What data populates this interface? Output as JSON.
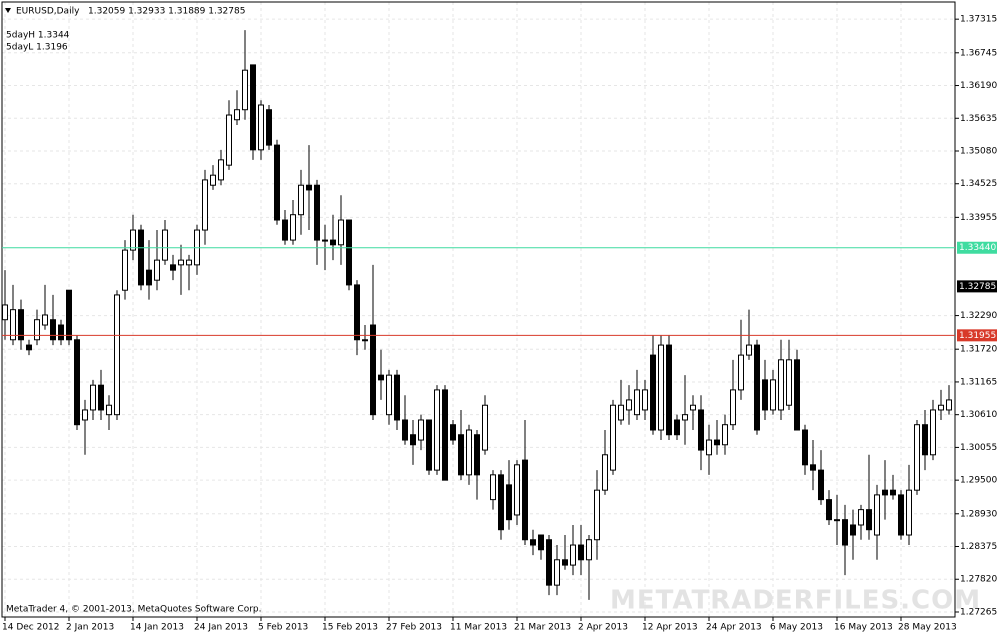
{
  "chart_data": {
    "type": "candlestick",
    "symbol": "EURUSD,Daily",
    "quote": "1.32059 1.32933 1.31889 1.32785",
    "indicators": [
      "5dayH 1.3344",
      "5dayL 1.3196"
    ],
    "footer": "MetaTrader 4, © 2001-2013, MetaQuotes Software Corp.",
    "watermark": "METATRADERFILES.COM",
    "categories": [
      "14 Dec 2012",
      null,
      null,
      null,
      null,
      null,
      null,
      null,
      "2 Jan 2013",
      null,
      null,
      null,
      null,
      null,
      null,
      null,
      "14 Jan 2013",
      null,
      null,
      null,
      null,
      null,
      null,
      null,
      "24 Jan 2013",
      null,
      null,
      null,
      null,
      null,
      null,
      null,
      "5 Feb 2013",
      null,
      null,
      null,
      null,
      null,
      null,
      null,
      "15 Feb 2013",
      null,
      null,
      null,
      null,
      null,
      null,
      null,
      "27 Feb 2013",
      null,
      null,
      null,
      null,
      null,
      null,
      null,
      "11 Mar 2013",
      null,
      null,
      null,
      null,
      null,
      null,
      null,
      "21 Mar 2013",
      null,
      null,
      null,
      null,
      null,
      null,
      null,
      "2 Apr 2013",
      null,
      null,
      null,
      null,
      null,
      null,
      null,
      "12 Apr 2013",
      null,
      null,
      null,
      null,
      null,
      null,
      null,
      "24 Apr 2013",
      null,
      null,
      null,
      null,
      null,
      null,
      null,
      "6 May 2013",
      null,
      null,
      null,
      null,
      null,
      null,
      null,
      "16 May 2013",
      null,
      null,
      null,
      null,
      null,
      null,
      null,
      "28 May 2013",
      null,
      null,
      null,
      null,
      null,
      null
    ],
    "open": [
      1.3222,
      1.3188,
      1.3239,
      1.3179,
      1.3188,
      1.3213,
      1.3222,
      1.3213,
      1.3272,
      1.3188,
      1.3052,
      1.3069,
      1.3111,
      1.3061,
      1.3061,
      1.3272,
      1.334,
      1.3374,
      1.3306,
      1.3289,
      1.3323,
      1.3315,
      1.3315,
      1.3315,
      1.3315,
      1.3374,
      1.345,
      1.3459,
      1.3484,
      1.3561,
      1.3578,
      1.3654,
      1.351,
      1.3578,
      1.3518,
      1.3391,
      1.3357,
      1.34,
      1.345,
      1.345,
      1.3357,
      1.3357,
      1.3349,
      1.3391,
      1.3281,
      1.3188,
      1.3213,
      1.3128,
      1.3061,
      1.3128,
      1.3052,
      1.3027,
      1.3018,
      1.3052,
      1.2967,
      1.3103,
      1.3044,
      1.3027,
      1.2959,
      1.3027,
      1.3001,
      1.2917,
      1.2959,
      1.2942,
      1.2891,
      1.2984,
      1.2849,
      1.2857,
      1.2849,
      1.2772,
      1.2815,
      1.2806,
      1.284,
      1.2815,
      1.2849,
      1.2933,
      1.2967,
      1.3052,
      1.3069,
      1.3061,
      1.3069,
      1.3162,
      1.3035,
      1.3179,
      1.3052,
      1.3052,
      1.3069,
      1.3069,
      1.2993,
      1.3018,
      1.301,
      1.3044,
      1.3103,
      1.3162,
      1.3179,
      1.312,
      1.3069,
      1.3069,
      1.3077,
      1.3154,
      1.3035,
      1.2976,
      1.2967,
      1.2917,
      1.2883,
      1.2883,
      1.2874,
      1.2874,
      1.29,
      1.2857,
      1.2933,
      1.2933,
      1.2925,
      1.2857,
      1.2933,
      1.3044,
      1.2993,
      1.3069,
      1.3069
    ],
    "high": [
      1.3306,
      1.3281,
      1.3256,
      1.3188,
      1.3239,
      1.3281,
      1.3264,
      1.3222,
      1.3272,
      1.3196,
      1.3086,
      1.312,
      1.3137,
      1.3094,
      1.3272,
      1.3357,
      1.34,
      1.3383,
      1.3357,
      1.3374,
      1.3391,
      1.3332,
      1.3349,
      1.3332,
      1.3383,
      1.3476,
      1.3484,
      1.351,
      1.3594,
      1.3611,
      1.3713,
      1.3654,
      1.3594,
      1.3586,
      1.3527,
      1.3408,
      1.3425,
      1.3476,
      1.3518,
      1.3459,
      1.3383,
      1.34,
      1.3433,
      1.3391,
      1.3289,
      1.3213,
      1.3315,
      1.3171,
      1.3137,
      1.3137,
      1.3094,
      1.3052,
      1.3061,
      1.3052,
      1.3111,
      1.3111,
      1.3052,
      1.3069,
      1.3044,
      1.3035,
      1.3094,
      1.2967,
      1.2967,
      1.2984,
      1.2984,
      1.3052,
      1.2866,
      1.2857,
      1.2857,
      1.284,
      1.2857,
      1.2874,
      1.2874,
      1.2857,
      1.2967,
      1.3035,
      1.3086,
      1.312,
      1.3111,
      1.3137,
      1.312,
      1.3196,
      1.3196,
      1.3196,
      1.3061,
      1.3128,
      1.3094,
      1.3094,
      1.3044,
      1.3052,
      1.3061,
      1.3154,
      1.3222,
      1.3239,
      1.3188,
      1.3154,
      1.3137,
      1.3188,
      1.3188,
      1.3171,
      1.3044,
      1.3018,
      1.3001,
      1.2933,
      1.2925,
      1.2908,
      1.29,
      1.2908,
      1.2993,
      1.2942,
      1.2984,
      1.2959,
      1.2933,
      1.2976,
      1.3052,
      1.3069,
      1.3086,
      1.3103,
      1.3111
    ],
    "low": [
      1.3188,
      1.3179,
      1.3171,
      1.3162,
      1.3179,
      1.3205,
      1.3179,
      1.3179,
      1.3179,
      1.3035,
      1.2993,
      1.3052,
      1.3052,
      1.3035,
      1.3052,
      1.3256,
      1.3323,
      1.3272,
      1.3256,
      1.3272,
      1.3315,
      1.3289,
      1.3264,
      1.3272,
      1.3298,
      1.3349,
      1.3442,
      1.345,
      1.3476,
      1.3552,
      1.3561,
      1.3493,
      1.3493,
      1.351,
      1.3383,
      1.3349,
      1.3349,
      1.3366,
      1.3374,
      1.3315,
      1.3306,
      1.3323,
      1.3315,
      1.3272,
      1.3162,
      1.3171,
      1.3052,
      1.3086,
      1.3044,
      1.3035,
      1.301,
      1.2976,
      1.3001,
      1.2959,
      1.2959,
      1.295,
      1.301,
      1.295,
      1.2942,
      1.2917,
      1.2993,
      1.29,
      1.2849,
      1.2866,
      1.2874,
      1.284,
      1.2823,
      1.2815,
      1.2755,
      1.2755,
      1.2798,
      1.2789,
      1.2789,
      1.2747,
      1.2815,
      1.2925,
      1.2959,
      1.3044,
      1.3044,
      1.3052,
      1.3052,
      1.3027,
      1.3018,
      1.3018,
      1.3018,
      1.301,
      1.3035,
      1.2967,
      1.2959,
      1.2993,
      1.2993,
      1.3035,
      1.3086,
      1.3154,
      1.3027,
      1.3052,
      1.3061,
      1.3052,
      1.3069,
      1.3035,
      1.2959,
      1.2933,
      1.2908,
      1.2874,
      1.284,
      1.2789,
      1.2815,
      1.2849,
      1.2849,
      1.2815,
      1.2883,
      1.2917,
      1.2849,
      1.284,
      1.2925,
      1.2967,
      1.2984,
      1.3052,
      1.3061
    ],
    "close": [
      1.3247,
      1.3239,
      1.3188,
      1.3171,
      1.3222,
      1.323,
      1.3188,
      1.3188,
      1.3188,
      1.3044,
      1.3069,
      1.3111,
      1.3069,
      1.3077,
      1.3264,
      1.334,
      1.3374,
      1.3281,
      1.3281,
      1.3323,
      1.3374,
      1.3306,
      1.3323,
      1.3323,
      1.3374,
      1.3459,
      1.3467,
      1.3493,
      1.3569,
      1.3578,
      1.3645,
      1.351,
      1.3586,
      1.3518,
      1.3391,
      1.3357,
      1.34,
      1.345,
      1.3442,
      1.3357,
      1.3357,
      1.3349,
      1.3391,
      1.3281,
      1.3188,
      1.3188,
      1.3061,
      1.312,
      1.3128,
      1.3052,
      1.3018,
      1.301,
      1.3052,
      1.2967,
      1.3103,
      1.295,
      1.3018,
      1.2959,
      1.3035,
      1.2959,
      1.3077,
      1.2959,
      1.2866,
      1.2883,
      1.2976,
      1.2849,
      1.284,
      1.2832,
      1.2772,
      1.2815,
      1.2806,
      1.284,
      1.2815,
      1.2849,
      1.2933,
      1.2993,
      1.3077,
      1.3077,
      1.3086,
      1.3103,
      1.3103,
      1.3035,
      1.3179,
      1.3027,
      1.3027,
      1.3061,
      1.3077,
      1.3001,
      1.3018,
      1.301,
      1.3044,
      1.3103,
      1.3162,
      1.3179,
      1.3035,
      1.3069,
      1.312,
      1.3154,
      1.3154,
      1.3035,
      1.2976,
      1.2967,
      1.2917,
      1.2883,
      1.2883,
      1.284,
      1.2857,
      1.29,
      1.2866,
      1.2925,
      1.2925,
      1.2925,
      1.2857,
      1.2933,
      1.3044,
      1.2993,
      1.3069,
      1.3077,
      1.3086
    ],
    "up_color": "#ffffff",
    "down_color": "#000000",
    "ylim": [
      1.2718,
      1.3764
    ],
    "yticks": [
      1.37315,
      1.36745,
      {
        "value": 1.3619,
        "label": "1.36190"
      },
      1.35635,
      {
        "value": 1.3508,
        "label": "1.35080"
      },
      1.34525,
      1.33955,
      {
        "value": 1.3229,
        "label": "1.32290"
      },
      {
        "value": 1.3172,
        "label": "1.31720"
      },
      1.31165,
      {
        "value": 1.3061,
        "label": "1.30610"
      },
      1.30055,
      {
        "value": 1.295,
        "label": "1.29500"
      },
      {
        "value": 1.2893,
        "label": "1.28930"
      },
      1.28375,
      {
        "value": 1.2782,
        "label": "1.27820"
      },
      1.27265
    ],
    "hlines": [
      {
        "value": 1.3344,
        "label": "1.33440",
        "color": "#3fdca0"
      },
      {
        "value": 1.31955,
        "label": "1.31955",
        "color": "#d83a2a"
      }
    ],
    "last_price": {
      "value": 1.32785,
      "label": "1.32785"
    },
    "grid": true
  }
}
